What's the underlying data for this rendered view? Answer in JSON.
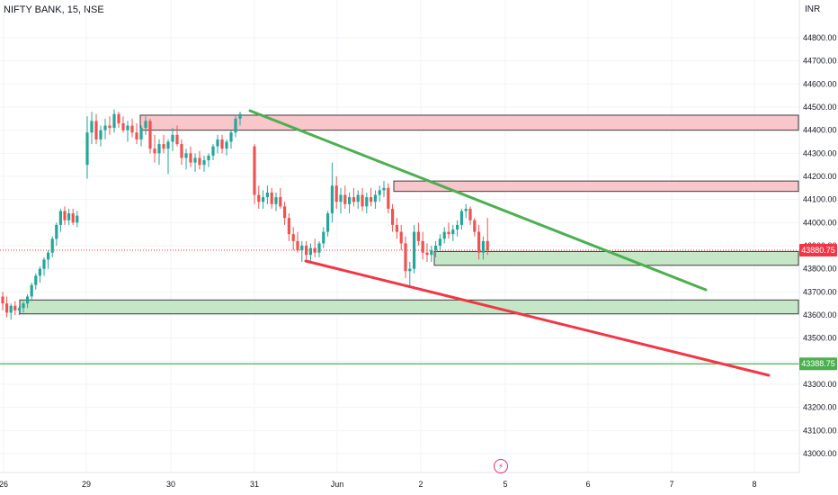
{
  "header": {
    "symbol_title": "NIFTY BANK, 15, NSE",
    "currency": "INR"
  },
  "chart_data": {
    "type": "candlestick",
    "y_axis": {
      "ylim": [
        42950,
        44950
      ],
      "ticks": [
        44800,
        44700,
        44600,
        44500,
        44400,
        44300,
        44200,
        44100,
        44000,
        43900,
        43800,
        43700,
        43600,
        43500,
        43400,
        43300,
        43200,
        43100,
        43000
      ],
      "tick_labels": [
        "44800.00",
        "44700.00",
        "44600.00",
        "44500.00",
        "44400.00",
        "44300.00",
        "44200.00",
        "44100.00",
        "44000.00",
        "43900.00",
        "43800.00",
        "43700.00",
        "43600.00",
        "43500.00",
        "43400.00",
        "43300.00",
        "43200.00",
        "43100.00",
        "43000.00"
      ]
    },
    "x_axis": {
      "tick_labels": [
        "26",
        "29",
        "30",
        "31",
        "Jun",
        "2",
        "5",
        "6",
        "7",
        "8"
      ]
    },
    "price_tags": [
      {
        "value": 43880.75,
        "label": "43880.75",
        "color": "#f23645"
      },
      {
        "value": 43388.75,
        "label": "43388.75",
        "color": "#4caf50"
      }
    ],
    "horizontal_lines": [
      {
        "value": 43880.75,
        "style": "dotted",
        "color": "#f23645"
      },
      {
        "value": 43388.75,
        "style": "solid",
        "color": "#4caf50"
      }
    ],
    "zones": [
      {
        "kind": "resistance",
        "top": 44465,
        "bottom": 44400,
        "color": "#f8c6cb"
      },
      {
        "kind": "resistance",
        "top": 44180,
        "bottom": 44135,
        "color": "#f8c6cb"
      },
      {
        "kind": "support",
        "top": 43875,
        "bottom": 43815,
        "color": "#c6e6c8"
      },
      {
        "kind": "support",
        "top": 43665,
        "bottom": 43605,
        "color": "#c6e6c8"
      }
    ],
    "trendlines": [
      {
        "name": "upper",
        "color": "#4caf50"
      },
      {
        "name": "lower",
        "color": "#f23645"
      }
    ],
    "colors": {
      "up": "#26a69a",
      "down": "#ef5350",
      "wick_up": "#26a69a",
      "wick_down": "#ef5350"
    },
    "candles": [
      [
        43680,
        43700,
        43620,
        43650
      ],
      [
        43650,
        43680,
        43590,
        43610
      ],
      [
        43610,
        43650,
        43580,
        43640
      ],
      [
        43640,
        43660,
        43600,
        43620
      ],
      [
        43620,
        43640,
        43600,
        43630
      ],
      [
        43630,
        43660,
        43610,
        43650
      ],
      [
        43650,
        43690,
        43630,
        43680
      ],
      [
        43680,
        43740,
        43660,
        43730
      ],
      [
        43730,
        43780,
        43710,
        43770
      ],
      [
        43770,
        43810,
        43740,
        43800
      ],
      [
        43800,
        43850,
        43770,
        43840
      ],
      [
        43840,
        43880,
        43800,
        43870
      ],
      [
        43870,
        43940,
        43850,
        43930
      ],
      [
        43930,
        44000,
        43900,
        43990
      ],
      [
        43990,
        44060,
        43960,
        44050
      ],
      [
        44050,
        44070,
        43990,
        44010
      ],
      [
        44010,
        44060,
        43990,
        44040
      ],
      [
        44040,
        44060,
        43990,
        44000
      ],
      [
        44000,
        44050,
        43980,
        44030
      ],
      [
        44250,
        44460,
        44190,
        44390
      ],
      [
        44390,
        44480,
        44340,
        44440
      ],
      [
        44440,
        44470,
        44340,
        44360
      ],
      [
        44360,
        44420,
        44330,
        44400
      ],
      [
        44400,
        44450,
        44360,
        44420
      ],
      [
        44420,
        44460,
        44380,
        44410
      ],
      [
        44410,
        44490,
        44390,
        44470
      ],
      [
        44470,
        44480,
        44410,
        44430
      ],
      [
        44430,
        44460,
        44390,
        44400
      ],
      [
        44400,
        44440,
        44350,
        44420
      ],
      [
        44420,
        44450,
        44370,
        44390
      ],
      [
        44390,
        44430,
        44340,
        44360
      ],
      [
        44360,
        44420,
        44330,
        44410
      ],
      [
        44410,
        44460,
        44380,
        44440
      ],
      [
        44440,
        44450,
        44300,
        44320
      ],
      [
        44320,
        44380,
        44260,
        44300
      ],
      [
        44300,
        44360,
        44250,
        44340
      ],
      [
        44340,
        44380,
        44300,
        44320
      ],
      [
        44320,
        44360,
        44210,
        44350
      ],
      [
        44350,
        44410,
        44310,
        44380
      ],
      [
        44380,
        44420,
        44330,
        44340
      ],
      [
        44340,
        44360,
        44250,
        44280
      ],
      [
        44280,
        44320,
        44230,
        44300
      ],
      [
        44300,
        44330,
        44240,
        44260
      ],
      [
        44260,
        44300,
        44220,
        44280
      ],
      [
        44280,
        44310,
        44230,
        44250
      ],
      [
        44250,
        44290,
        44220,
        44270
      ],
      [
        44270,
        44300,
        44240,
        44290
      ],
      [
        44290,
        44340,
        44270,
        44330
      ],
      [
        44330,
        44380,
        44300,
        44360
      ],
      [
        44360,
        44380,
        44300,
        44320
      ],
      [
        44320,
        44360,
        44290,
        44350
      ],
      [
        44350,
        44400,
        44320,
        44390
      ],
      [
        44390,
        44460,
        44370,
        44450
      ],
      [
        44450,
        44480,
        44420,
        44470
      ],
      [
        44330,
        44340,
        44080,
        44120
      ],
      [
        44120,
        44160,
        44060,
        44090
      ],
      [
        44090,
        44140,
        44060,
        44110
      ],
      [
        44110,
        44160,
        44080,
        44130
      ],
      [
        44130,
        44150,
        44060,
        44080
      ],
      [
        44080,
        44130,
        44050,
        44110
      ],
      [
        44110,
        44150,
        44060,
        44070
      ],
      [
        44070,
        44090,
        43990,
        44020
      ],
      [
        44020,
        44040,
        43920,
        43950
      ],
      [
        43950,
        43980,
        43880,
        43920
      ],
      [
        43920,
        43960,
        43870,
        43880
      ],
      [
        43880,
        43920,
        43830,
        43900
      ],
      [
        43900,
        43920,
        43840,
        43860
      ],
      [
        43860,
        43910,
        43830,
        43890
      ],
      [
        43890,
        43930,
        43850,
        43870
      ],
      [
        43870,
        43920,
        43850,
        43910
      ],
      [
        43910,
        43980,
        43890,
        43960
      ],
      [
        43960,
        44050,
        43940,
        44040
      ],
      [
        44040,
        44260,
        44000,
        44160
      ],
      [
        44160,
        44200,
        44060,
        44090
      ],
      [
        44090,
        44150,
        44040,
        44120
      ],
      [
        44120,
        44160,
        44060,
        44080
      ],
      [
        44080,
        44130,
        44040,
        44110
      ],
      [
        44110,
        44150,
        44070,
        44090
      ],
      [
        44090,
        44140,
        44060,
        44120
      ],
      [
        44120,
        44150,
        44050,
        44070
      ],
      [
        44070,
        44130,
        44040,
        44110
      ],
      [
        44110,
        44150,
        44070,
        44090
      ],
      [
        44090,
        44140,
        44060,
        44120
      ],
      [
        44120,
        44160,
        44090,
        44140
      ],
      [
        44140,
        44180,
        44110,
        44150
      ],
      [
        44150,
        44170,
        44040,
        44060
      ],
      [
        44060,
        44080,
        43960,
        43990
      ],
      [
        43990,
        44020,
        43930,
        43960
      ],
      [
        43960,
        43990,
        43880,
        43910
      ],
      [
        43910,
        43940,
        43760,
        43790
      ],
      [
        43790,
        43830,
        43720,
        43800
      ],
      [
        43800,
        43990,
        43780,
        43960
      ],
      [
        43960,
        44000,
        43900,
        43920
      ],
      [
        43920,
        43960,
        43840,
        43870
      ],
      [
        43870,
        43910,
        43830,
        43860
      ],
      [
        43860,
        43900,
        43830,
        43880
      ],
      [
        43880,
        43920,
        43850,
        43900
      ],
      [
        43900,
        43950,
        43880,
        43930
      ],
      [
        43930,
        43980,
        43910,
        43960
      ],
      [
        43960,
        44000,
        43930,
        43950
      ],
      [
        43950,
        43990,
        43920,
        43970
      ],
      [
        43970,
        44010,
        43940,
        43990
      ],
      [
        43990,
        44060,
        43970,
        44050
      ],
      [
        44050,
        44080,
        44020,
        44060
      ],
      [
        44060,
        44070,
        43990,
        44010
      ],
      [
        44010,
        44020,
        43940,
        43960
      ],
      [
        43960,
        43990,
        43840,
        43870
      ],
      [
        43870,
        43940,
        43840,
        43920
      ],
      [
        43920,
        44020,
        43860,
        43880
      ]
    ]
  }
}
